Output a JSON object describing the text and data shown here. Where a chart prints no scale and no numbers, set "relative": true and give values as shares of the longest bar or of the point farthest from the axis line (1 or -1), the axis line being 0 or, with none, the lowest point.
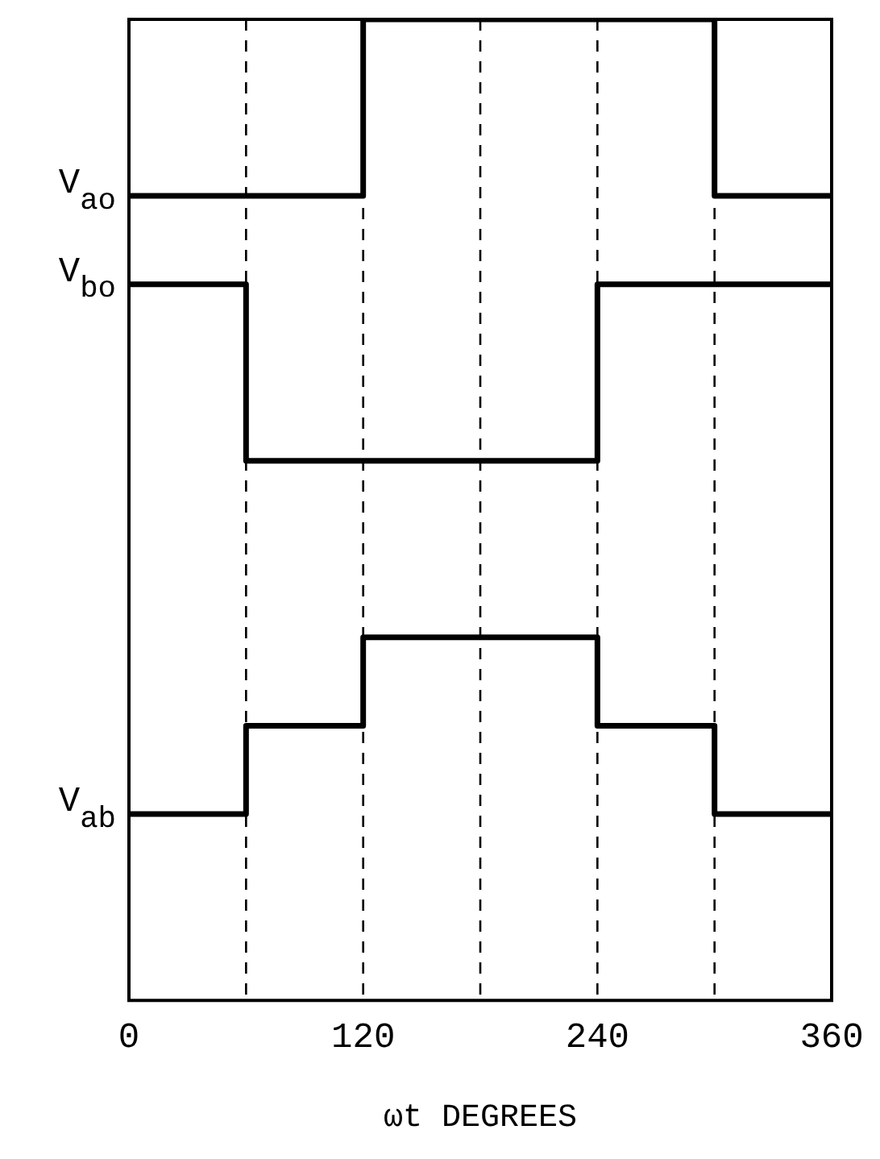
{
  "chart_data": {
    "type": "step",
    "relative": true,
    "xlabel": "ωt DEGREES",
    "xlim": [
      0,
      360
    ],
    "xticks": [
      0,
      120,
      240,
      360
    ],
    "grid": false,
    "legend": false,
    "marker": "none",
    "line_style": "solid",
    "series": [
      {
        "name": "V$_{ao}$",
        "color": "#000000",
        "x": [
          0,
          120,
          300,
          360
        ],
        "values": [
          0.82,
          1,
          0.82,
          0.82
        ]
      },
      {
        "name": "V$_{bo}$",
        "color": "#000000",
        "x": [
          0,
          60,
          240,
          360
        ],
        "values": [
          0.73,
          0.55,
          0.73,
          0.73
        ]
      },
      {
        "name": "V$_{ab}$",
        "color": "#000000",
        "x": [
          0,
          60,
          120,
          240,
          300,
          360
        ],
        "values": [
          0.19,
          0.28,
          0.37,
          0.28,
          0.19,
          0.19
        ]
      }
    ],
    "ref_lines": [
      {
        "axis": "x",
        "value": 60,
        "color": "#000000",
        "line_style": "dashed"
      },
      {
        "axis": "x",
        "value": 120,
        "color": "#000000",
        "line_style": "dashed"
      },
      {
        "axis": "x",
        "value": 180,
        "color": "#000000",
        "line_style": "dashed"
      },
      {
        "axis": "x",
        "value": 240,
        "color": "#000000",
        "line_style": "dashed"
      },
      {
        "axis": "x",
        "value": 300,
        "color": "#000000",
        "line_style": "dashed"
      }
    ]
  }
}
